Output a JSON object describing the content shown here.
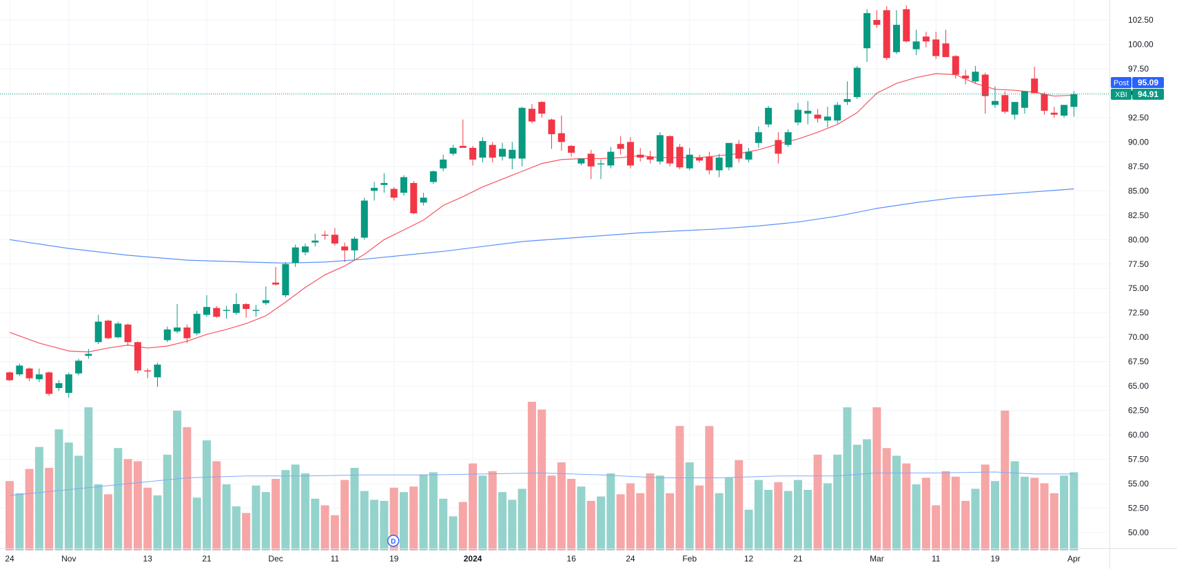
{
  "chart_data": {
    "type": "candlestick",
    "symbol": "XBI",
    "y_ticks": [
      "102.50",
      "100.00",
      "97.50",
      "95.00",
      "92.50",
      "90.00",
      "87.50",
      "85.00",
      "82.50",
      "80.00",
      "77.50",
      "75.00",
      "72.50",
      "70.00",
      "67.50",
      "65.00",
      "62.50",
      "60.00",
      "57.50",
      "55.00",
      "52.50",
      "50.00"
    ],
    "ylim": [
      48.0,
      104.3
    ],
    "x_ticks": [
      {
        "i": 0,
        "label": "24"
      },
      {
        "i": 6,
        "label": "Nov"
      },
      {
        "i": 14,
        "label": "13"
      },
      {
        "i": 20,
        "label": "21"
      },
      {
        "i": 27,
        "label": "Dec"
      },
      {
        "i": 33,
        "label": "11"
      },
      {
        "i": 39,
        "label": "19"
      },
      {
        "i": 47,
        "label": "2024",
        "bold": true
      },
      {
        "i": 57,
        "label": "16"
      },
      {
        "i": 63,
        "label": "24"
      },
      {
        "i": 69,
        "label": "Feb"
      },
      {
        "i": 75,
        "label": "12"
      },
      {
        "i": 80,
        "label": "21"
      },
      {
        "i": 88,
        "label": "Mar"
      },
      {
        "i": 94,
        "label": "11"
      },
      {
        "i": 100,
        "label": "19"
      },
      {
        "i": 108,
        "label": "Apr"
      }
    ],
    "candles": [
      [
        66.4,
        66.5,
        65.5,
        65.6
      ],
      [
        66.2,
        67.3,
        66.0,
        67.1
      ],
      [
        66.8,
        66.9,
        65.5,
        65.8
      ],
      [
        65.7,
        66.8,
        65.4,
        66.2
      ],
      [
        66.4,
        66.5,
        64.0,
        64.2
      ],
      [
        64.8,
        65.6,
        64.5,
        65.3
      ],
      [
        64.3,
        66.4,
        63.8,
        66.2
      ],
      [
        66.3,
        67.8,
        66.1,
        67.6
      ],
      [
        68.1,
        68.8,
        67.8,
        68.3
      ],
      [
        69.5,
        72.3,
        69.3,
        71.6
      ],
      [
        71.7,
        71.8,
        69.8,
        69.9
      ],
      [
        70.0,
        71.6,
        69.9,
        71.4
      ],
      [
        71.3,
        71.4,
        69.1,
        69.5
      ],
      [
        69.5,
        69.6,
        66.3,
        66.6
      ],
      [
        66.6,
        66.8,
        65.8,
        66.5
      ],
      [
        65.9,
        67.4,
        64.9,
        67.2
      ],
      [
        69.7,
        71.1,
        69.5,
        70.8
      ],
      [
        70.6,
        73.4,
        70.4,
        71.0
      ],
      [
        71.0,
        71.3,
        69.4,
        69.9
      ],
      [
        70.4,
        72.7,
        70.2,
        72.4
      ],
      [
        72.3,
        74.3,
        72.1,
        73.1
      ],
      [
        73.0,
        73.2,
        72.0,
        72.1
      ],
      [
        72.7,
        73.2,
        71.9,
        72.8
      ],
      [
        72.5,
        74.5,
        72.3,
        73.4
      ],
      [
        73.4,
        73.5,
        72.0,
        72.9
      ],
      [
        72.7,
        73.3,
        72.1,
        72.8
      ],
      [
        73.5,
        75.2,
        73.3,
        73.8
      ],
      [
        75.6,
        77.2,
        75.3,
        75.4
      ],
      [
        74.3,
        77.7,
        74.1,
        77.5
      ],
      [
        77.6,
        79.5,
        77.2,
        79.2
      ],
      [
        78.7,
        79.6,
        78.4,
        79.3
      ],
      [
        79.7,
        80.6,
        79.3,
        79.9
      ],
      [
        80.5,
        80.9,
        80.0,
        80.4
      ],
      [
        80.5,
        81.2,
        79.4,
        79.6
      ],
      [
        79.3,
        79.7,
        77.7,
        78.9
      ],
      [
        78.9,
        80.3,
        77.9,
        80.1
      ],
      [
        80.2,
        84.3,
        80.0,
        84.0
      ],
      [
        85.0,
        85.9,
        84.0,
        85.3
      ],
      [
        85.6,
        86.8,
        84.8,
        85.8
      ],
      [
        85.2,
        85.4,
        84.0,
        84.3
      ],
      [
        84.8,
        86.6,
        84.5,
        86.4
      ],
      [
        85.8,
        86.0,
        82.6,
        82.7
      ],
      [
        83.8,
        84.8,
        83.5,
        84.3
      ],
      [
        85.9,
        87.1,
        85.7,
        87.0
      ],
      [
        87.3,
        88.7,
        87.0,
        88.2
      ],
      [
        88.8,
        89.7,
        88.6,
        89.4
      ],
      [
        89.6,
        92.3,
        89.4,
        89.4
      ],
      [
        89.4,
        89.6,
        87.6,
        88.2
      ],
      [
        88.4,
        90.5,
        87.9,
        90.1
      ],
      [
        89.7,
        90.0,
        87.9,
        88.4
      ],
      [
        88.5,
        89.9,
        88.1,
        89.3
      ],
      [
        88.3,
        90.0,
        87.2,
        89.2
      ],
      [
        88.3,
        93.6,
        87.5,
        93.5
      ],
      [
        93.4,
        93.9,
        91.9,
        92.1
      ],
      [
        94.1,
        94.2,
        92.5,
        92.9
      ],
      [
        92.3,
        92.4,
        89.3,
        90.8
      ],
      [
        90.9,
        92.7,
        89.1,
        90.0
      ],
      [
        89.6,
        89.7,
        88.5,
        88.9
      ],
      [
        87.8,
        88.3,
        87.6,
        88.3
      ],
      [
        88.8,
        89.2,
        86.2,
        87.5
      ],
      [
        87.7,
        88.2,
        86.2,
        87.8
      ],
      [
        87.6,
        89.5,
        87.3,
        89.0
      ],
      [
        89.8,
        90.6,
        88.7,
        89.3
      ],
      [
        90.0,
        90.5,
        87.3,
        87.6
      ],
      [
        88.7,
        89.4,
        88.0,
        88.4
      ],
      [
        88.5,
        89.1,
        87.8,
        88.2
      ],
      [
        88.0,
        91.0,
        87.7,
        90.7
      ],
      [
        90.6,
        90.7,
        87.5,
        87.8
      ],
      [
        89.5,
        89.8,
        87.2,
        87.4
      ],
      [
        87.3,
        89.4,
        87.1,
        88.7
      ],
      [
        88.4,
        88.7,
        87.9,
        88.1
      ],
      [
        88.5,
        89.0,
        86.7,
        87.1
      ],
      [
        87.1,
        88.8,
        86.4,
        88.4
      ],
      [
        87.4,
        89.9,
        87.1,
        89.9
      ],
      [
        89.8,
        90.2,
        87.9,
        88.3
      ],
      [
        88.2,
        89.4,
        87.9,
        89.0
      ],
      [
        89.9,
        91.6,
        89.4,
        91.0
      ],
      [
        91.8,
        93.7,
        91.5,
        93.5
      ],
      [
        90.2,
        91.0,
        87.8,
        88.8
      ],
      [
        89.7,
        91.3,
        89.5,
        91.0
      ],
      [
        92.0,
        94.0,
        91.7,
        93.3
      ],
      [
        92.9,
        94.2,
        91.8,
        93.2
      ],
      [
        92.8,
        93.4,
        92.0,
        92.4
      ],
      [
        92.2,
        93.6,
        91.5,
        92.6
      ],
      [
        92.2,
        94.1,
        91.9,
        93.8
      ],
      [
        94.1,
        96.2,
        93.8,
        94.4
      ],
      [
        94.6,
        97.8,
        94.4,
        97.6
      ],
      [
        99.6,
        103.6,
        98.2,
        103.2
      ],
      [
        102.5,
        103.5,
        101.7,
        102.0
      ],
      [
        103.5,
        103.9,
        98.4,
        98.6
      ],
      [
        99.2,
        103.5,
        99.0,
        102.0
      ],
      [
        103.6,
        104.0,
        100.2,
        100.3
      ],
      [
        99.5,
        101.5,
        98.9,
        100.3
      ],
      [
        100.8,
        101.3,
        99.7,
        100.3
      ],
      [
        100.5,
        101.3,
        98.5,
        98.8
      ],
      [
        100.1,
        101.5,
        98.8,
        98.7
      ],
      [
        98.8,
        98.9,
        96.5,
        96.9
      ],
      [
        96.8,
        97.4,
        95.9,
        96.5
      ],
      [
        96.2,
        97.8,
        96.0,
        97.2
      ],
      [
        96.9,
        97.1,
        92.9,
        94.7
      ],
      [
        93.8,
        95.7,
        93.5,
        94.2
      ],
      [
        94.8,
        95.2,
        92.9,
        93.1
      ],
      [
        92.8,
        94.0,
        92.3,
        94.1
      ],
      [
        93.5,
        95.1,
        92.9,
        95.2
      ],
      [
        96.5,
        97.7,
        95.1,
        95.0
      ],
      [
        94.9,
        95.1,
        92.8,
        93.2
      ],
      [
        93.0,
        93.6,
        92.5,
        92.8
      ],
      [
        92.7,
        93.8,
        92.5,
        93.8
      ],
      [
        93.6,
        95.2,
        92.6,
        94.9
      ]
    ],
    "volume_colors": {
      "up": "#94d3cb",
      "down": "#f6a6a6"
    },
    "volume_heights": [
      0.63,
      0.52,
      0.74,
      0.94,
      0.75,
      1.1,
      0.98,
      0.86,
      1.3,
      0.6,
      0.51,
      0.93,
      0.83,
      0.81,
      0.57,
      0.5,
      0.87,
      1.27,
      1.12,
      0.48,
      1.0,
      0.81,
      0.6,
      0.4,
      0.34,
      0.59,
      0.53,
      0.65,
      0.73,
      0.78,
      0.7,
      0.47,
      0.41,
      0.32,
      0.64,
      0.75,
      0.54,
      0.46,
      0.45,
      0.57,
      0.53,
      0.58,
      0.69,
      0.71,
      0.47,
      0.31,
      0.44,
      0.79,
      0.68,
      0.72,
      0.53,
      0.46,
      0.56,
      1.35,
      1.28,
      0.68,
      0.8,
      0.65,
      0.58,
      0.45,
      0.49,
      0.7,
      0.51,
      0.61,
      0.52,
      0.7,
      0.68,
      0.52,
      1.13,
      0.8,
      0.59,
      1.13,
      0.52,
      0.66,
      0.82,
      0.37,
      0.64,
      0.55,
      0.62,
      0.54,
      0.64,
      0.55,
      0.87,
      0.61,
      0.87,
      1.3,
      0.96,
      1.01,
      1.3,
      0.93,
      0.86,
      0.79,
      0.6,
      0.66,
      0.41,
      0.72,
      0.67,
      0.45,
      0.56,
      0.78,
      0.63,
      1.27,
      0.81,
      0.67,
      0.66,
      0.61,
      0.52,
      0.68,
      0.71,
      0.76
    ],
    "sma_short": [
      [
        0,
        70.5
      ],
      [
        3,
        69.4
      ],
      [
        6,
        68.6
      ],
      [
        8,
        68.5
      ],
      [
        10,
        68.9
      ],
      [
        12,
        69.2
      ],
      [
        14,
        68.9
      ],
      [
        16,
        69.1
      ],
      [
        18,
        69.6
      ],
      [
        20,
        70.3
      ],
      [
        22,
        70.8
      ],
      [
        24,
        71.4
      ],
      [
        26,
        72.2
      ],
      [
        28,
        73.6
      ],
      [
        30,
        75.1
      ],
      [
        32,
        76.4
      ],
      [
        34,
        77.3
      ],
      [
        36,
        78.5
      ],
      [
        38,
        80.0
      ],
      [
        40,
        81.0
      ],
      [
        42,
        82.0
      ],
      [
        44,
        83.5
      ],
      [
        46,
        84.4
      ],
      [
        48,
        85.4
      ],
      [
        50,
        86.2
      ],
      [
        52,
        87.0
      ],
      [
        54,
        87.8
      ],
      [
        56,
        88.2
      ],
      [
        58,
        88.3
      ],
      [
        60,
        88.3
      ],
      [
        62,
        88.4
      ],
      [
        64,
        88.6
      ],
      [
        66,
        88.4
      ],
      [
        68,
        88.4
      ],
      [
        70,
        88.4
      ],
      [
        72,
        88.6
      ],
      [
        74,
        88.8
      ],
      [
        76,
        89.2
      ],
      [
        78,
        89.8
      ],
      [
        80,
        90.3
      ],
      [
        82,
        91.0
      ],
      [
        84,
        91.8
      ],
      [
        86,
        93.0
      ],
      [
        88,
        95.0
      ],
      [
        90,
        96.0
      ],
      [
        92,
        96.6
      ],
      [
        94,
        97.0
      ],
      [
        96,
        96.9
      ],
      [
        98,
        96.0
      ],
      [
        100,
        95.4
      ],
      [
        102,
        95.3
      ],
      [
        104,
        95.1
      ],
      [
        106,
        94.7
      ],
      [
        108,
        94.8
      ]
    ],
    "sma_long": [
      [
        0,
        80.0
      ],
      [
        6,
        79.1
      ],
      [
        12,
        78.4
      ],
      [
        18,
        77.9
      ],
      [
        24,
        77.7
      ],
      [
        28,
        77.6
      ],
      [
        32,
        77.7
      ],
      [
        36,
        78.0
      ],
      [
        40,
        78.4
      ],
      [
        44,
        78.8
      ],
      [
        48,
        79.3
      ],
      [
        52,
        79.8
      ],
      [
        56,
        80.1
      ],
      [
        60,
        80.4
      ],
      [
        64,
        80.7
      ],
      [
        68,
        80.9
      ],
      [
        72,
        81.1
      ],
      [
        76,
        81.4
      ],
      [
        80,
        81.8
      ],
      [
        84,
        82.4
      ],
      [
        88,
        83.2
      ],
      [
        92,
        83.8
      ],
      [
        96,
        84.3
      ],
      [
        100,
        84.6
      ],
      [
        104,
        84.9
      ],
      [
        108,
        85.2
      ]
    ],
    "volume_ma": [
      [
        0,
        53.8
      ],
      [
        6,
        54.4
      ],
      [
        12,
        55.0
      ],
      [
        18,
        55.6
      ],
      [
        24,
        55.8
      ],
      [
        30,
        55.8
      ],
      [
        36,
        55.9
      ],
      [
        42,
        55.9
      ],
      [
        48,
        56.0
      ],
      [
        54,
        56.1
      ],
      [
        60,
        55.9
      ],
      [
        66,
        55.6
      ],
      [
        72,
        55.6
      ],
      [
        78,
        55.8
      ],
      [
        84,
        55.8
      ],
      [
        88,
        56.1
      ],
      [
        94,
        56.1
      ],
      [
        100,
        56.2
      ],
      [
        104,
        56.0
      ],
      [
        108,
        56.0
      ]
    ],
    "last_price": {
      "value": 94.91,
      "label": "XBI",
      "text": "94.91",
      "color": "#089981"
    },
    "post_price": {
      "value": 95.09,
      "label": "Post",
      "text": "95.09",
      "color": "#2962ff"
    },
    "dividend_marker": {
      "i": 39,
      "label": "D"
    },
    "colors": {
      "up": "#089981",
      "down": "#f23645",
      "sma_short": "#f7525f",
      "sma_long": "#5b8ff9",
      "volume_ma": "#7fa8f7",
      "grid": "#f0f3fa",
      "text": "#131722"
    },
    "grid": true
  }
}
